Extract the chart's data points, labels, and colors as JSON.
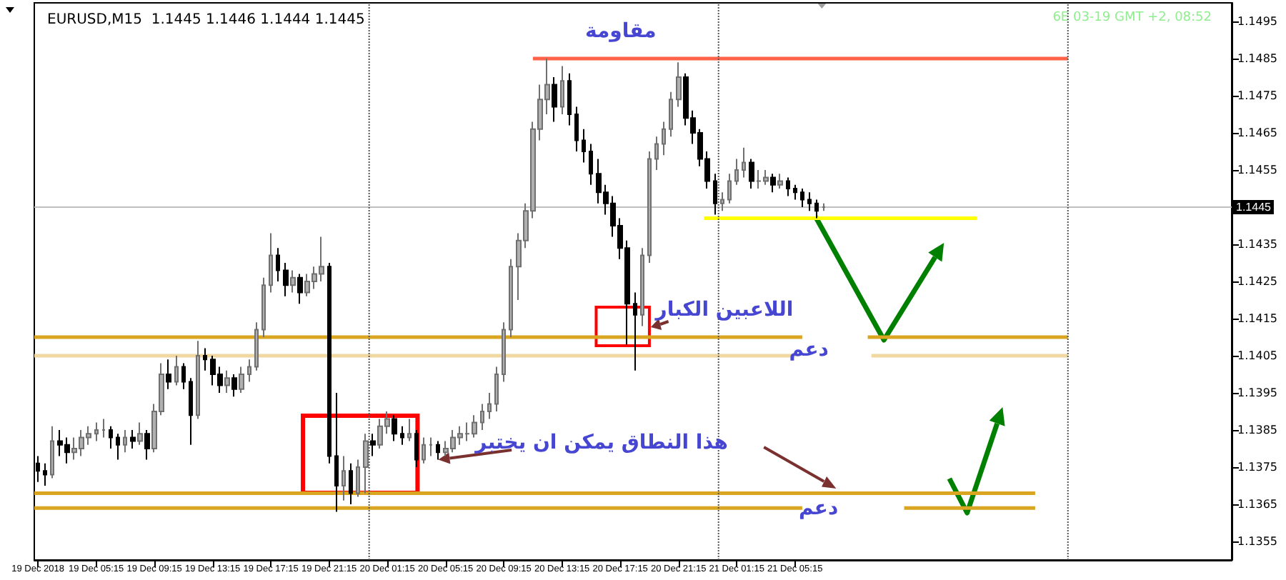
{
  "chart_data": {
    "type": "candlestick",
    "title": "EURUSD,M15  1.1445 1.1446 1.1444 1.1445",
    "x": [
      "2018-12-19T01:15",
      "2018-12-19T01:45",
      "2018-12-19T02:15",
      "2018-12-19T02:45",
      "2018-12-19T03:15",
      "2018-12-19T03:45",
      "2018-12-19T04:15",
      "2018-12-19T04:45",
      "2018-12-19T05:15",
      "2018-12-19T05:45",
      "2018-12-19T06:15",
      "2018-12-19T06:45",
      "2018-12-19T07:15",
      "2018-12-19T07:45",
      "2018-12-19T08:15",
      "2018-12-19T08:45",
      "2018-12-19T09:15",
      "2018-12-19T09:45",
      "2018-12-19T10:15",
      "2018-12-19T10:45",
      "2018-12-19T11:15",
      "2018-12-19T11:45",
      "2018-12-19T12:15",
      "2018-12-19T12:45",
      "2018-12-19T13:15",
      "2018-12-19T13:45",
      "2018-12-19T14:15",
      "2018-12-19T14:45",
      "2018-12-19T15:15",
      "2018-12-19T15:45",
      "2018-12-19T16:15",
      "2018-12-19T16:45",
      "2018-12-19T17:15",
      "2018-12-19T17:45",
      "2018-12-19T18:15",
      "2018-12-19T18:45",
      "2018-12-19T19:15",
      "2018-12-19T19:45",
      "2018-12-19T20:15",
      "2018-12-19T20:45",
      "2018-12-19T21:15",
      "2018-12-19T21:45",
      "2018-12-19T22:15",
      "2018-12-19T22:45",
      "2018-12-19T23:15",
      "2018-12-19T23:45",
      "2018-12-20T00:15",
      "2018-12-20T00:45",
      "2018-12-20T01:15",
      "2018-12-20T01:45",
      "2018-12-20T02:15",
      "2018-12-20T02:45",
      "2018-12-20T03:15",
      "2018-12-20T03:45",
      "2018-12-20T04:15",
      "2018-12-20T04:45",
      "2018-12-20T05:15",
      "2018-12-20T05:45",
      "2018-12-20T06:15",
      "2018-12-20T06:45",
      "2018-12-20T07:15",
      "2018-12-20T07:45",
      "2018-12-20T08:15",
      "2018-12-20T08:45",
      "2018-12-20T09:15",
      "2018-12-20T09:45",
      "2018-12-20T10:15",
      "2018-12-20T10:45",
      "2018-12-20T11:15",
      "2018-12-20T11:45",
      "2018-12-20T12:15",
      "2018-12-20T12:45",
      "2018-12-20T13:15",
      "2018-12-20T13:45",
      "2018-12-20T14:15",
      "2018-12-20T14:45",
      "2018-12-20T15:15",
      "2018-12-20T15:45",
      "2018-12-20T16:15",
      "2018-12-20T16:45",
      "2018-12-20T17:15",
      "2018-12-20T17:45",
      "2018-12-20T18:15",
      "2018-12-20T18:45",
      "2018-12-20T19:15",
      "2018-12-20T19:45",
      "2018-12-20T20:15",
      "2018-12-20T20:45",
      "2018-12-20T21:15",
      "2018-12-20T21:45",
      "2018-12-20T22:15",
      "2018-12-20T22:45",
      "2018-12-20T23:15",
      "2018-12-20T23:45",
      "2018-12-21T00:15",
      "2018-12-21T00:45",
      "2018-12-21T01:15",
      "2018-12-21T01:45",
      "2018-12-21T02:15",
      "2018-12-21T02:45",
      "2018-12-21T03:15",
      "2018-12-21T03:45",
      "2018-12-21T04:15",
      "2018-12-21T04:45",
      "2018-12-21T05:15",
      "2018-12-21T05:45",
      "2018-12-21T06:15",
      "2018-12-21T06:45",
      "2018-12-21T07:15"
    ],
    "ohlc": [
      [
        1.1376,
        1.1378,
        1.1371,
        1.1374
      ],
      [
        1.1374,
        1.1376,
        1.137,
        1.1373
      ],
      [
        1.1373,
        1.1386,
        1.1372,
        1.1382
      ],
      [
        1.1382,
        1.1385,
        1.1378,
        1.1381
      ],
      [
        1.1381,
        1.1383,
        1.1376,
        1.1379
      ],
      [
        1.1379,
        1.1383,
        1.1377,
        1.138
      ],
      [
        1.138,
        1.1385,
        1.1378,
        1.1383
      ],
      [
        1.1383,
        1.1386,
        1.1381,
        1.1384
      ],
      [
        1.1384,
        1.1387,
        1.1382,
        1.1385
      ],
      [
        1.1385,
        1.1388,
        1.1383,
        1.1385
      ],
      [
        1.1385,
        1.1386,
        1.138,
        1.1383
      ],
      [
        1.1383,
        1.1384,
        1.1377,
        1.1381
      ],
      [
        1.1381,
        1.1385,
        1.1379,
        1.1383
      ],
      [
        1.1383,
        1.1385,
        1.138,
        1.1382
      ],
      [
        1.1382,
        1.1387,
        1.1381,
        1.1384
      ],
      [
        1.1384,
        1.1385,
        1.1377,
        1.138
      ],
      [
        1.138,
        1.1392,
        1.1379,
        1.139
      ],
      [
        1.139,
        1.1403,
        1.1389,
        1.14
      ],
      [
        1.14,
        1.1404,
        1.1396,
        1.1398
      ],
      [
        1.1398,
        1.1405,
        1.1397,
        1.1402
      ],
      [
        1.1402,
        1.1403,
        1.1396,
        1.1398
      ],
      [
        1.1398,
        1.1399,
        1.1381,
        1.1389
      ],
      [
        1.1389,
        1.1409,
        1.1388,
        1.1405
      ],
      [
        1.1405,
        1.1407,
        1.1401,
        1.1404
      ],
      [
        1.1404,
        1.1405,
        1.1397,
        1.14
      ],
      [
        1.14,
        1.1402,
        1.1395,
        1.1397
      ],
      [
        1.1397,
        1.1401,
        1.1395,
        1.1399
      ],
      [
        1.1399,
        1.14,
        1.1394,
        1.1396
      ],
      [
        1.1396,
        1.1402,
        1.1395,
        1.14
      ],
      [
        1.14,
        1.1404,
        1.1398,
        1.1402
      ],
      [
        1.1402,
        1.1414,
        1.1401,
        1.1412
      ],
      [
        1.1412,
        1.1426,
        1.141,
        1.1424
      ],
      [
        1.1424,
        1.1438,
        1.1422,
        1.1432
      ],
      [
        1.1432,
        1.1434,
        1.1425,
        1.1428
      ],
      [
        1.1428,
        1.143,
        1.1421,
        1.1424
      ],
      [
        1.1424,
        1.1428,
        1.1422,
        1.1426
      ],
      [
        1.1426,
        1.1427,
        1.1419,
        1.1422
      ],
      [
        1.1422,
        1.1427,
        1.1421,
        1.1425
      ],
      [
        1.1425,
        1.1429,
        1.1423,
        1.1427
      ],
      [
        1.1427,
        1.1437,
        1.1425,
        1.1429
      ],
      [
        1.1429,
        1.143,
        1.1376,
        1.1378
      ],
      [
        1.1378,
        1.1395,
        1.1363,
        1.137
      ],
      [
        1.137,
        1.1378,
        1.1366,
        1.1374
      ],
      [
        1.1374,
        1.1376,
        1.1365,
        1.1368
      ],
      [
        1.1368,
        1.1377,
        1.1367,
        1.1375
      ],
      [
        1.1375,
        1.1384,
        1.1368,
        1.1382
      ],
      [
        1.1382,
        1.1384,
        1.1378,
        1.1381
      ],
      [
        1.1381,
        1.1388,
        1.138,
        1.1386
      ],
      [
        1.1386,
        1.139,
        1.1384,
        1.1388
      ],
      [
        1.1388,
        1.1389,
        1.1382,
        1.1384
      ],
      [
        1.1384,
        1.1386,
        1.1381,
        1.1383
      ],
      [
        1.1383,
        1.1388,
        1.1382,
        1.1384
      ],
      [
        1.1384,
        1.1385,
        1.1375,
        1.1377
      ],
      [
        1.1377,
        1.1383,
        1.1376,
        1.1381
      ],
      [
        1.1381,
        1.1383,
        1.1378,
        1.1381
      ],
      [
        1.1381,
        1.1382,
        1.1377,
        1.1379
      ],
      [
        1.1379,
        1.1382,
        1.1378,
        1.138
      ],
      [
        1.138,
        1.1385,
        1.1379,
        1.1383
      ],
      [
        1.1383,
        1.1386,
        1.1381,
        1.1384
      ],
      [
        1.1384,
        1.1387,
        1.1382,
        1.1384
      ],
      [
        1.1384,
        1.1389,
        1.1383,
        1.1387
      ],
      [
        1.1387,
        1.1392,
        1.1385,
        1.139
      ],
      [
        1.139,
        1.1395,
        1.1388,
        1.1392
      ],
      [
        1.1392,
        1.1402,
        1.139,
        1.14
      ],
      [
        1.14,
        1.1414,
        1.1398,
        1.1412
      ],
      [
        1.1412,
        1.1431,
        1.141,
        1.1429
      ],
      [
        1.1429,
        1.1438,
        1.142,
        1.1436
      ],
      [
        1.1436,
        1.1446,
        1.1434,
        1.1444
      ],
      [
        1.1444,
        1.1468,
        1.1442,
        1.1466
      ],
      [
        1.1466,
        1.1478,
        1.1463,
        1.1474
      ],
      [
        1.1474,
        1.1485,
        1.147,
        1.1478
      ],
      [
        1.1478,
        1.148,
        1.1468,
        1.1472
      ],
      [
        1.1472,
        1.1483,
        1.147,
        1.1479
      ],
      [
        1.1479,
        1.1481,
        1.1467,
        1.147
      ],
      [
        1.147,
        1.1472,
        1.146,
        1.1463
      ],
      [
        1.1463,
        1.1466,
        1.1457,
        1.146
      ],
      [
        1.146,
        1.1462,
        1.1451,
        1.1454
      ],
      [
        1.1454,
        1.1458,
        1.1446,
        1.1449
      ],
      [
        1.1449,
        1.1451,
        1.1443,
        1.1446
      ],
      [
        1.1446,
        1.1448,
        1.1437,
        1.144
      ],
      [
        1.144,
        1.1442,
        1.1431,
        1.1434
      ],
      [
        1.1434,
        1.1436,
        1.1408,
        1.1419
      ],
      [
        1.1419,
        1.1422,
        1.1401,
        1.1416
      ],
      [
        1.1416,
        1.1434,
        1.1413,
        1.1432
      ],
      [
        1.1432,
        1.146,
        1.143,
        1.1458
      ],
      [
        1.1458,
        1.1464,
        1.1455,
        1.1462
      ],
      [
        1.1462,
        1.1468,
        1.1459,
        1.1466
      ],
      [
        1.1466,
        1.1476,
        1.1464,
        1.1474
      ],
      [
        1.1474,
        1.1484,
        1.1472,
        1.148
      ],
      [
        1.148,
        1.1481,
        1.1467,
        1.1469
      ],
      [
        1.1469,
        1.1471,
        1.1462,
        1.1465
      ],
      [
        1.1465,
        1.1466,
        1.1456,
        1.1458
      ],
      [
        1.1458,
        1.146,
        1.145,
        1.1452
      ],
      [
        1.1452,
        1.1454,
        1.1443,
        1.1446
      ],
      [
        1.1446,
        1.1449,
        1.1444,
        1.1447
      ],
      [
        1.1447,
        1.1454,
        1.1446,
        1.1452
      ],
      [
        1.1452,
        1.1458,
        1.1451,
        1.1455
      ],
      [
        1.1455,
        1.1461,
        1.1453,
        1.1457
      ],
      [
        1.1457,
        1.1458,
        1.145,
        1.1452
      ],
      [
        1.1452,
        1.1455,
        1.145,
        1.1452
      ],
      [
        1.1452,
        1.1455,
        1.1451,
        1.1453
      ],
      [
        1.1453,
        1.1454,
        1.1449,
        1.1451
      ],
      [
        1.1451,
        1.1454,
        1.145,
        1.1452
      ],
      [
        1.1452,
        1.1453,
        1.1448,
        1.145
      ],
      [
        1.145,
        1.1451,
        1.1447,
        1.1449
      ],
      [
        1.1449,
        1.145,
        1.1445,
        1.1447
      ],
      [
        1.1447,
        1.1449,
        1.1444,
        1.1446
      ],
      [
        1.1446,
        1.1447,
        1.1442,
        1.1444
      ],
      [
        1.1445,
        1.1446,
        1.1444,
        1.1445
      ]
    ],
    "series": [
      {
        "type": "line",
        "color": "#ff6347",
        "x": [
          "2018-12-20T11:15",
          "2018-12-22T00:00"
        ],
        "values": [
          1.1485,
          1.1485
        ]
      },
      {
        "type": "line",
        "color": "#ffff00",
        "x": [
          "2018-12-20T23:00",
          "2018-12-21T17:45"
        ],
        "values": [
          1.1442,
          1.1442
        ]
      },
      {
        "type": "line",
        "color": "#daa520",
        "x": [
          "2018-12-19T01:00",
          "2018-12-21T05:45",
          "2018-12-21T08:00",
          "2018-12-21T10:15",
          "2018-12-22T00:00"
        ],
        "values": [
          1.141,
          1.141,
          null,
          1.141,
          1.141
        ]
      },
      {
        "type": "line",
        "color": "#f0d8a0",
        "x": [
          "2018-12-19T01:00",
          "2018-12-21T05:15",
          "2018-12-21T08:00",
          "2018-12-21T10:30",
          "2018-12-22T00:00"
        ],
        "values": [
          1.1405,
          1.1405,
          null,
          1.1405,
          1.1405
        ]
      },
      {
        "type": "line",
        "color": "#daa520",
        "x": [
          "2018-12-19T01:00",
          "2018-12-21T21:45"
        ],
        "values": [
          1.1368,
          1.1368
        ]
      },
      {
        "type": "line",
        "color": "#daa520",
        "x": [
          "2018-12-19T01:00",
          "2018-12-21T05:45",
          "2018-12-21T09:00",
          "2018-12-21T12:45",
          "2018-12-21T21:45"
        ],
        "values": [
          1.1364,
          1.1364,
          null,
          1.1364,
          1.1364
        ]
      }
    ],
    "xlim": [
      "2018-12-19T01:00",
      "2018-12-22T11:15"
    ],
    "xticks": [
      {
        "value": "2018-12-19T01:15",
        "label": "19 Dec 2018"
      },
      {
        "value": "2018-12-19T05:15",
        "label": "19 Dec 05:15"
      },
      {
        "value": "2018-12-19T09:15",
        "label": "19 Dec 09:15"
      },
      {
        "value": "2018-12-19T13:15",
        "label": "19 Dec 13:15"
      },
      {
        "value": "2018-12-19T17:15",
        "label": "19 Dec 17:15"
      },
      {
        "value": "2018-12-19T21:15",
        "label": "19 Dec 21:15"
      },
      {
        "value": "2018-12-20T01:15",
        "label": "20 Dec 01:15"
      },
      {
        "value": "2018-12-20T05:15",
        "label": "20 Dec 05:15"
      },
      {
        "value": "2018-12-20T09:15",
        "label": "20 Dec 09:15"
      },
      {
        "value": "2018-12-20T13:15",
        "label": "20 Dec 13:15"
      },
      {
        "value": "2018-12-20T17:15",
        "label": "20 Dec 17:15"
      },
      {
        "value": "2018-12-20T21:15",
        "label": "20 Dec 21:15"
      },
      {
        "value": "2018-12-21T01:15",
        "label": "21 Dec 01:15"
      },
      {
        "value": "2018-12-21T05:15",
        "label": "21 Dec 05:15"
      }
    ],
    "ylim": [
      1.135,
      1.15
    ],
    "yticks": [
      1.1355,
      1.1365,
      1.1375,
      1.1385,
      1.1395,
      1.1405,
      1.1415,
      1.1425,
      1.1435,
      1.1455,
      1.1465,
      1.1475,
      1.1485,
      1.1495
    ],
    "ref_lines": [
      {
        "axis": "y",
        "value": 1.1445,
        "label": "1.1445",
        "color": "#c0c0c0"
      },
      {
        "axis": "x",
        "value": "2018-12-20T00:00",
        "label": null,
        "color": "#555555",
        "line_style": "dotted"
      },
      {
        "axis": "x",
        "value": "2018-12-21T00:00",
        "label": null,
        "color": "#555555",
        "line_style": "dotted"
      },
      {
        "axis": "x",
        "value": "2018-12-22T00:00",
        "label": null,
        "color": "#555555",
        "line_style": "dotted"
      }
    ],
    "annotations": [
      "6E 03-19 GMT +2, 08:52",
      "مقاومة",
      "اللاعبين الكبار",
      "دعم",
      {
        "text": "هذا النطاق يمكن ان يختبر",
        "x": "2018-12-20T04:45",
        "y": 1.1377
      },
      "دعم"
    ]
  }
}
